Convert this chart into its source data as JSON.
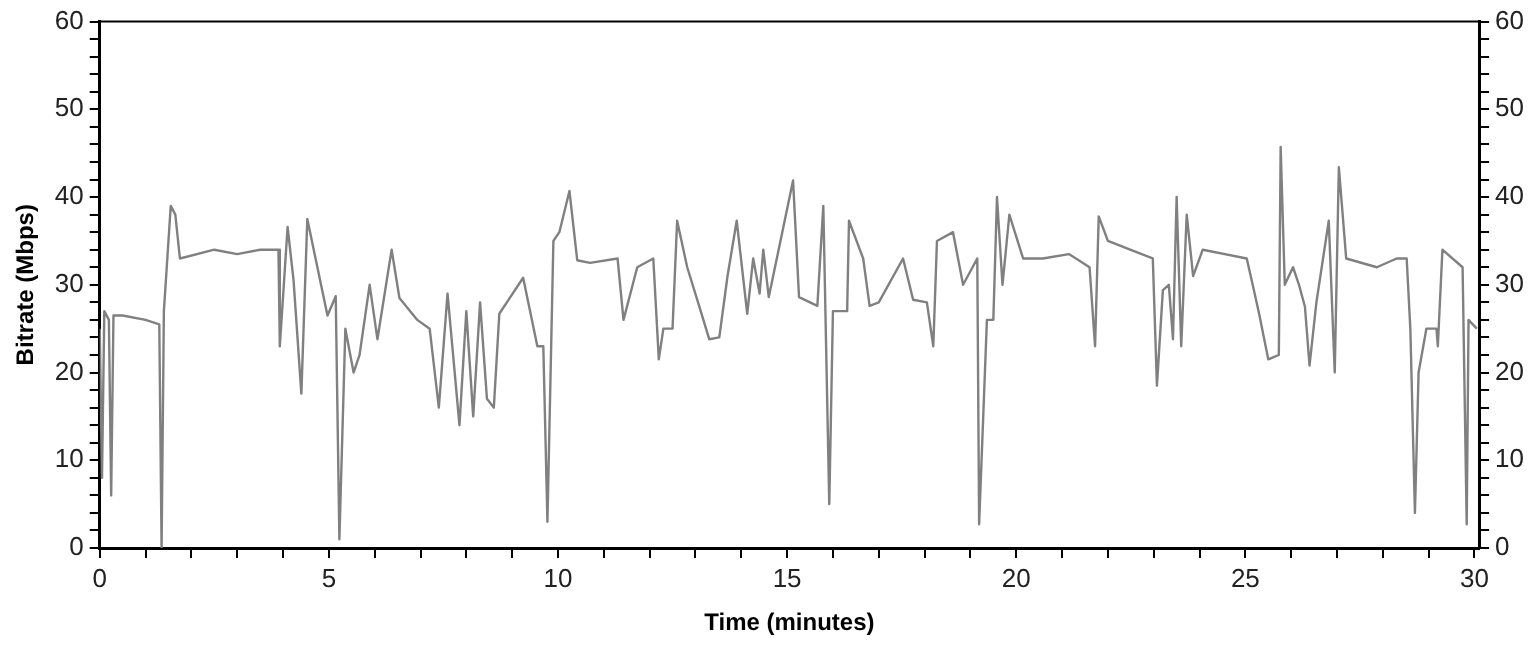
{
  "chart_data": {
    "type": "line",
    "xlabel": "Time (minutes)",
    "ylabel": "Bitrate (Mbps)",
    "xlim": [
      0,
      30.1
    ],
    "ylim": [
      0,
      60
    ],
    "y2lim": [
      0,
      60
    ],
    "xticks": [
      0,
      {
        "value": 1,
        "label": null
      },
      {
        "value": 2,
        "label": null
      },
      {
        "value": 3,
        "label": null
      },
      {
        "value": 4,
        "label": null
      },
      5,
      {
        "value": 6,
        "label": null
      },
      {
        "value": 7,
        "label": null
      },
      {
        "value": 8,
        "label": null
      },
      {
        "value": 9,
        "label": null
      },
      10,
      {
        "value": 11,
        "label": null
      },
      {
        "value": 12,
        "label": null
      },
      {
        "value": 13,
        "label": null
      },
      {
        "value": 14,
        "label": null
      },
      15,
      {
        "value": 16,
        "label": null
      },
      {
        "value": 17,
        "label": null
      },
      {
        "value": 18,
        "label": null
      },
      {
        "value": 19,
        "label": null
      },
      20,
      {
        "value": 21,
        "label": null
      },
      {
        "value": 22,
        "label": null
      },
      {
        "value": 23,
        "label": null
      },
      {
        "value": 24,
        "label": null
      },
      25,
      {
        "value": 26,
        "label": null
      },
      {
        "value": 27,
        "label": null
      },
      {
        "value": 28,
        "label": null
      },
      {
        "value": 29,
        "label": null
      },
      30
    ],
    "yticks": [
      0,
      {
        "value": 2,
        "label": null
      },
      {
        "value": 4,
        "label": null
      },
      {
        "value": 6,
        "label": null
      },
      {
        "value": 8,
        "label": null
      },
      10,
      {
        "value": 12,
        "label": null
      },
      {
        "value": 14,
        "label": null
      },
      {
        "value": 16,
        "label": null
      },
      {
        "value": 18,
        "label": null
      },
      20,
      {
        "value": 22,
        "label": null
      },
      {
        "value": 24,
        "label": null
      },
      {
        "value": 26,
        "label": null
      },
      {
        "value": 28,
        "label": null
      },
      30,
      {
        "value": 32,
        "label": null
      },
      {
        "value": 34,
        "label": null
      },
      {
        "value": 36,
        "label": null
      },
      {
        "value": 38,
        "label": null
      },
      40,
      {
        "value": 42,
        "label": null
      },
      {
        "value": 44,
        "label": null
      },
      {
        "value": 46,
        "label": null
      },
      {
        "value": 48,
        "label": null
      },
      50,
      {
        "value": 52,
        "label": null
      },
      {
        "value": 54,
        "label": null
      },
      {
        "value": 56,
        "label": null
      },
      {
        "value": 58,
        "label": null
      },
      60
    ],
    "y2ticks": [
      0,
      {
        "value": 2,
        "label": null
      },
      {
        "value": 4,
        "label": null
      },
      {
        "value": 6,
        "label": null
      },
      {
        "value": 8,
        "label": null
      },
      10,
      {
        "value": 12,
        "label": null
      },
      {
        "value": 14,
        "label": null
      },
      {
        "value": 16,
        "label": null
      },
      {
        "value": 18,
        "label": null
      },
      20,
      {
        "value": 22,
        "label": null
      },
      {
        "value": 24,
        "label": null
      },
      {
        "value": 26,
        "label": null
      },
      {
        "value": 28,
        "label": null
      },
      30,
      {
        "value": 32,
        "label": null
      },
      {
        "value": 34,
        "label": null
      },
      {
        "value": 36,
        "label": null
      },
      {
        "value": 38,
        "label": null
      },
      40,
      {
        "value": 42,
        "label": null
      },
      {
        "value": 44,
        "label": null
      },
      {
        "value": 46,
        "label": null
      },
      {
        "value": 48,
        "label": null
      },
      50,
      {
        "value": 52,
        "label": null
      },
      {
        "value": 54,
        "label": null
      },
      {
        "value": 56,
        "label": null
      },
      {
        "value": 58,
        "label": null
      },
      60
    ],
    "grid": false,
    "legend": false,
    "marker": "none",
    "line_style": "solid",
    "series": [
      {
        "color": "#808080",
        "x": [
          0,
          0.05,
          0.1,
          0.2,
          0.25,
          0.3,
          0.5,
          1.0,
          1.3,
          1.35,
          1.4,
          1.55,
          1.65,
          1.75,
          2.5,
          3.0,
          3.5,
          3.9,
          3.93,
          4.1,
          4.23,
          4.4,
          4.53,
          4.75,
          4.97,
          5.15,
          5.23,
          5.36,
          5.54,
          5.67,
          5.89,
          6.06,
          6.37,
          6.54,
          6.93,
          7.2,
          7.4,
          7.59,
          7.85,
          8.0,
          8.15,
          8.3,
          8.45,
          8.6,
          8.72,
          9.24,
          9.55,
          9.68,
          9.77,
          9.9,
          10.03,
          10.25,
          10.42,
          10.7,
          11.3,
          11.43,
          11.73,
          12.08,
          12.2,
          12.3,
          12.5,
          12.6,
          12.82,
          13.08,
          13.3,
          13.52,
          13.7,
          13.9,
          14.13,
          14.26,
          14.4,
          14.48,
          14.6,
          15.13,
          15.26,
          15.66,
          15.79,
          15.92,
          16.0,
          16.31,
          16.35,
          16.66,
          16.8,
          17.0,
          17.53,
          17.75,
          18.05,
          18.19,
          18.27,
          18.62,
          18.84,
          19.15,
          19.19,
          19.36,
          19.5,
          19.58,
          19.7,
          19.85,
          20.15,
          20.58,
          21.15,
          21.6,
          21.72,
          21.8,
          22.0,
          22.98,
          23.07,
          23.2,
          23.33,
          23.42,
          23.5,
          23.6,
          23.72,
          23.86,
          24.07,
          25.03,
          25.16,
          25.3,
          25.5,
          25.73,
          25.77,
          25.86,
          26.04,
          26.17,
          26.3,
          26.4,
          26.55,
          26.82,
          26.95,
          27.04,
          27.2,
          27.87,
          28.3,
          28.52,
          28.6,
          28.7,
          28.78,
          28.95,
          29.17,
          29.2,
          29.3,
          29.74,
          29.83,
          29.87,
          30.05
        ],
        "values": [
          25,
          8,
          27,
          26,
          6,
          26.5,
          26.5,
          26,
          25.5,
          0,
          27,
          39,
          38,
          33,
          34,
          33.5,
          34,
          34,
          23,
          36.6,
          30.5,
          17.6,
          37.5,
          32,
          26.5,
          28.7,
          1,
          25,
          20,
          22,
          30,
          23.8,
          34,
          28.5,
          26,
          25,
          16,
          29,
          14,
          27,
          15,
          28,
          17,
          16,
          26.7,
          30.8,
          23,
          23,
          3,
          35,
          36,
          40.7,
          32.8,
          32.5,
          33,
          26,
          32,
          33,
          21.5,
          25,
          25,
          37.3,
          32,
          27.6,
          23.8,
          24,
          31,
          37.3,
          26.7,
          33,
          29,
          34,
          28.6,
          41.9,
          28.6,
          27.6,
          39,
          5,
          27,
          27,
          37.3,
          33,
          27.6,
          28,
          33,
          28.3,
          28,
          23,
          35,
          36,
          30,
          33,
          2.7,
          26,
          26,
          40,
          30,
          38,
          33,
          33,
          33.5,
          32,
          23,
          37.8,
          35,
          33,
          18.5,
          29.4,
          30,
          23.8,
          40,
          23,
          38,
          31,
          34,
          33,
          30,
          26.7,
          21.5,
          22,
          45.7,
          30,
          32,
          30,
          27.5,
          20.8,
          28,
          37.3,
          20,
          43.4,
          33,
          32,
          33,
          33,
          25,
          4,
          20,
          25,
          25,
          23,
          34,
          32,
          2.7,
          26,
          25
        ]
      }
    ]
  }
}
